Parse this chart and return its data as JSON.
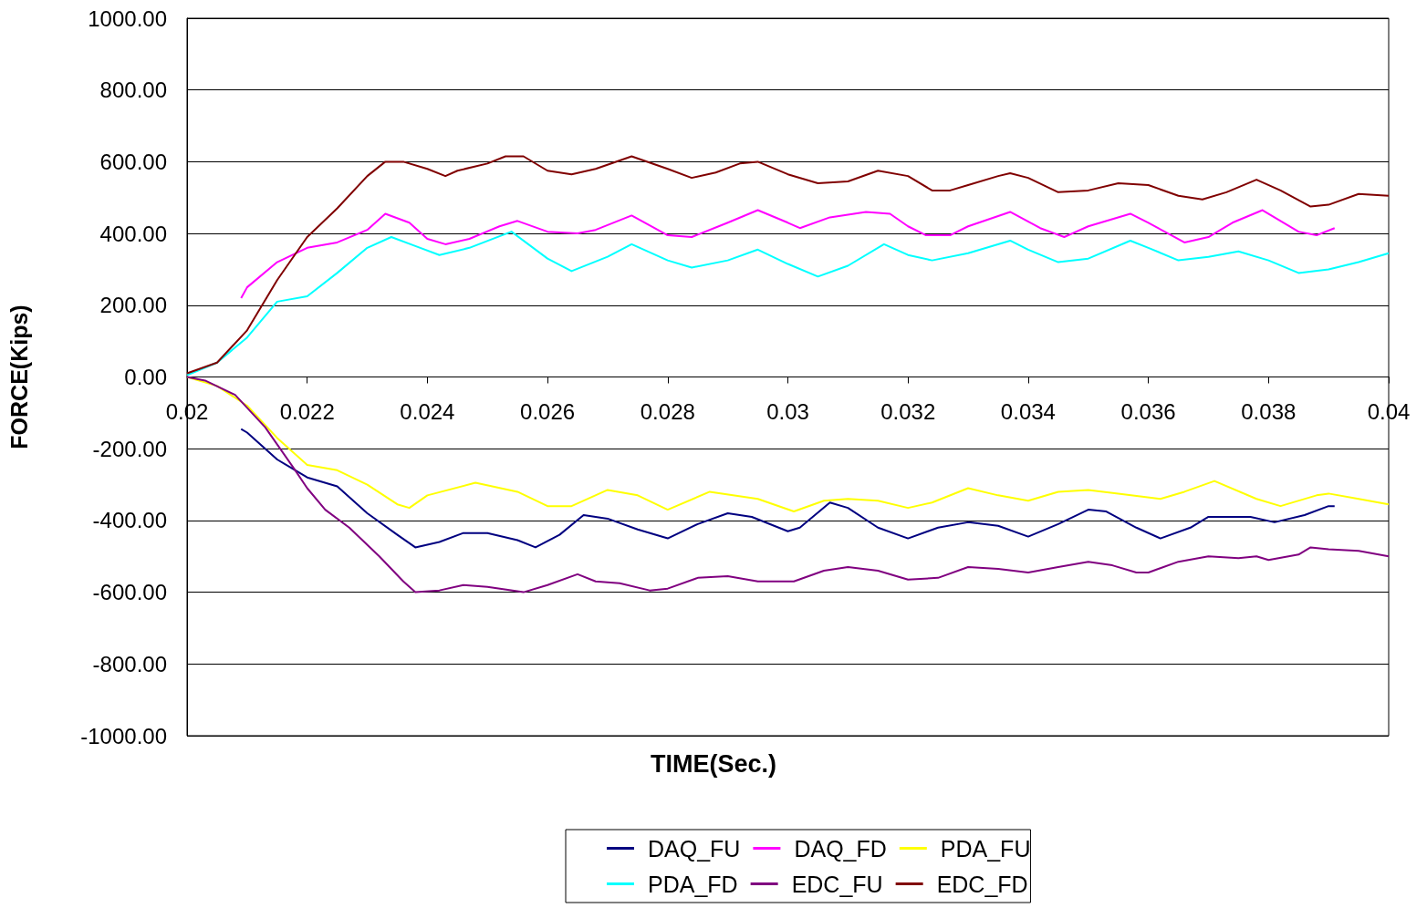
{
  "chart_data": {
    "type": "line",
    "xlabel": "TIME(Sec.)",
    "ylabel": "FORCE(Kips)",
    "xlim": [
      0.02,
      0.04
    ],
    "xticks": [
      0.02,
      0.022,
      0.024,
      0.026,
      0.028,
      0.03,
      0.032,
      0.034,
      0.036,
      0.038,
      0.04
    ],
    "ylim": [
      -1000,
      1000
    ],
    "yticks": [
      {
        "value": -1000,
        "label": "-1000.00"
      },
      {
        "value": -800,
        "label": "-800.00"
      },
      {
        "value": -600,
        "label": "-600.00"
      },
      {
        "value": -400,
        "label": "-400.00"
      },
      {
        "value": -200,
        "label": "-200.00"
      },
      {
        "value": 0,
        "label": "0.00"
      },
      {
        "value": 200,
        "label": "200.00"
      },
      {
        "value": 400,
        "label": "400.00"
      },
      {
        "value": 600,
        "label": "600.00"
      },
      {
        "value": 800,
        "label": "800.00"
      },
      {
        "value": 1000,
        "label": "1000.00"
      }
    ],
    "grid": "y",
    "legend": "bottom",
    "series": [
      {
        "name": "DAQ_FU",
        "color": "#000080",
        "x": [
          0.0209,
          0.021,
          0.0215,
          0.022,
          0.0225,
          0.023,
          0.0235,
          0.0238,
          0.0242,
          0.0246,
          0.025,
          0.0255,
          0.0258,
          0.0262,
          0.0266,
          0.027,
          0.0275,
          0.028,
          0.0285,
          0.029,
          0.0294,
          0.03,
          0.0302,
          0.0307,
          0.031,
          0.0315,
          0.032,
          0.0325,
          0.033,
          0.0335,
          0.034,
          0.0345,
          0.035,
          0.0353,
          0.0358,
          0.0362,
          0.0367,
          0.037,
          0.0377,
          0.0381,
          0.0386,
          0.039,
          0.0391
        ],
        "values": [
          -145,
          -155,
          -230,
          -280,
          -305,
          -380,
          -440,
          -475,
          -460,
          -435,
          -435,
          -455,
          -475,
          -440,
          -385,
          -395,
          -425,
          -450,
          -410,
          -380,
          -390,
          -430,
          -420,
          -350,
          -365,
          -420,
          -450,
          -420,
          -405,
          -415,
          -445,
          -410,
          -370,
          -375,
          -420,
          -450,
          -420,
          -390,
          -390,
          -405,
          -385,
          -360,
          -360
        ]
      },
      {
        "name": "DAQ_FD",
        "color": "#ff00ff",
        "x": [
          0.0209,
          0.021,
          0.0215,
          0.022,
          0.0225,
          0.023,
          0.0233,
          0.0237,
          0.024,
          0.0243,
          0.0247,
          0.0252,
          0.0255,
          0.026,
          0.0265,
          0.0268,
          0.0274,
          0.028,
          0.0284,
          0.029,
          0.0295,
          0.03,
          0.0302,
          0.0307,
          0.0313,
          0.0317,
          0.032,
          0.0323,
          0.0327,
          0.033,
          0.0337,
          0.0342,
          0.0346,
          0.035,
          0.0357,
          0.036,
          0.0366,
          0.037,
          0.0374,
          0.0379,
          0.0385,
          0.0388,
          0.0391
        ],
        "values": [
          220,
          250,
          320,
          360,
          375,
          410,
          455,
          430,
          385,
          370,
          385,
          420,
          435,
          405,
          400,
          410,
          450,
          395,
          390,
          430,
          465,
          430,
          415,
          445,
          460,
          455,
          420,
          395,
          395,
          420,
          460,
          415,
          390,
          420,
          455,
          430,
          375,
          390,
          430,
          465,
          405,
          395,
          415
        ]
      },
      {
        "name": "PDA_FU",
        "color": "#ffff00",
        "x": [
          0.02,
          0.0205,
          0.021,
          0.0215,
          0.022,
          0.0225,
          0.023,
          0.0235,
          0.0237,
          0.024,
          0.0248,
          0.0255,
          0.026,
          0.0264,
          0.027,
          0.0275,
          0.028,
          0.0287,
          0.0295,
          0.0301,
          0.0306,
          0.031,
          0.0315,
          0.032,
          0.0324,
          0.033,
          0.0335,
          0.034,
          0.0345,
          0.035,
          0.0355,
          0.0362,
          0.0366,
          0.0371,
          0.0378,
          0.0382,
          0.0388,
          0.039,
          0.0395,
          0.04
        ],
        "values": [
          0,
          -25,
          -80,
          -170,
          -245,
          -260,
          -300,
          -355,
          -365,
          -330,
          -295,
          -320,
          -360,
          -360,
          -315,
          -330,
          -370,
          -320,
          -340,
          -375,
          -345,
          -340,
          -345,
          -365,
          -350,
          -310,
          -330,
          -345,
          -320,
          -315,
          -325,
          -340,
          -320,
          -290,
          -340,
          -360,
          -330,
          -325,
          -340,
          -355
        ]
      },
      {
        "name": "PDA_FD",
        "color": "#00ffff",
        "x": [
          0.02,
          0.0205,
          0.021,
          0.0215,
          0.022,
          0.0225,
          0.023,
          0.0234,
          0.0238,
          0.0242,
          0.0247,
          0.0254,
          0.026,
          0.0264,
          0.027,
          0.0274,
          0.028,
          0.0284,
          0.029,
          0.0295,
          0.03,
          0.0305,
          0.031,
          0.0316,
          0.032,
          0.0324,
          0.033,
          0.0337,
          0.034,
          0.0345,
          0.035,
          0.0357,
          0.036,
          0.0365,
          0.037,
          0.0375,
          0.038,
          0.0385,
          0.039,
          0.0395,
          0.04
        ],
        "values": [
          5,
          40,
          110,
          210,
          225,
          290,
          360,
          390,
          365,
          340,
          360,
          405,
          330,
          295,
          335,
          370,
          325,
          305,
          325,
          355,
          315,
          280,
          310,
          370,
          340,
          325,
          345,
          380,
          355,
          320,
          330,
          380,
          360,
          325,
          335,
          350,
          325,
          290,
          300,
          320,
          345
        ]
      },
      {
        "name": "EDC_FU",
        "color": "#800080",
        "x": [
          0.02,
          0.0203,
          0.0208,
          0.0213,
          0.0218,
          0.022,
          0.0223,
          0.0227,
          0.0232,
          0.0236,
          0.0238,
          0.0242,
          0.0246,
          0.025,
          0.0256,
          0.026,
          0.0265,
          0.0268,
          0.0272,
          0.0277,
          0.028,
          0.0285,
          0.029,
          0.0295,
          0.0301,
          0.0306,
          0.031,
          0.0315,
          0.032,
          0.0325,
          0.033,
          0.0335,
          0.034,
          0.0345,
          0.035,
          0.0354,
          0.0358,
          0.036,
          0.0365,
          0.037,
          0.0375,
          0.0378,
          0.038,
          0.0385,
          0.0387,
          0.039,
          0.0395,
          0.04
        ],
        "values": [
          0,
          -10,
          -50,
          -140,
          -260,
          -310,
          -370,
          -420,
          -500,
          -570,
          -600,
          -595,
          -580,
          -585,
          -600,
          -580,
          -550,
          -570,
          -575,
          -595,
          -590,
          -560,
          -555,
          -570,
          -570,
          -540,
          -530,
          -540,
          -565,
          -560,
          -530,
          -535,
          -545,
          -530,
          -515,
          -525,
          -545,
          -545,
          -515,
          -500,
          -505,
          -500,
          -510,
          -495,
          -475,
          -480,
          -485,
          -500
        ]
      },
      {
        "name": "EDC_FD",
        "color": "#800000",
        "x": [
          0.02,
          0.0205,
          0.021,
          0.0215,
          0.022,
          0.0225,
          0.023,
          0.0233,
          0.0236,
          0.024,
          0.0243,
          0.0245,
          0.025,
          0.0253,
          0.0256,
          0.026,
          0.0264,
          0.0268,
          0.0274,
          0.028,
          0.0284,
          0.0288,
          0.0292,
          0.0295,
          0.03,
          0.0305,
          0.031,
          0.0315,
          0.032,
          0.0324,
          0.0327,
          0.033,
          0.0335,
          0.0337,
          0.034,
          0.0345,
          0.035,
          0.0355,
          0.036,
          0.0365,
          0.0369,
          0.0373,
          0.0378,
          0.0382,
          0.0387,
          0.039,
          0.0395,
          0.04
        ],
        "values": [
          10,
          40,
          130,
          270,
          390,
          470,
          560,
          600,
          600,
          580,
          560,
          575,
          595,
          615,
          615,
          575,
          565,
          580,
          615,
          580,
          555,
          570,
          595,
          600,
          565,
          540,
          545,
          575,
          560,
          520,
          520,
          535,
          560,
          568,
          555,
          515,
          520,
          540,
          535,
          505,
          495,
          515,
          550,
          520,
          475,
          480,
          510,
          505
        ]
      }
    ]
  }
}
